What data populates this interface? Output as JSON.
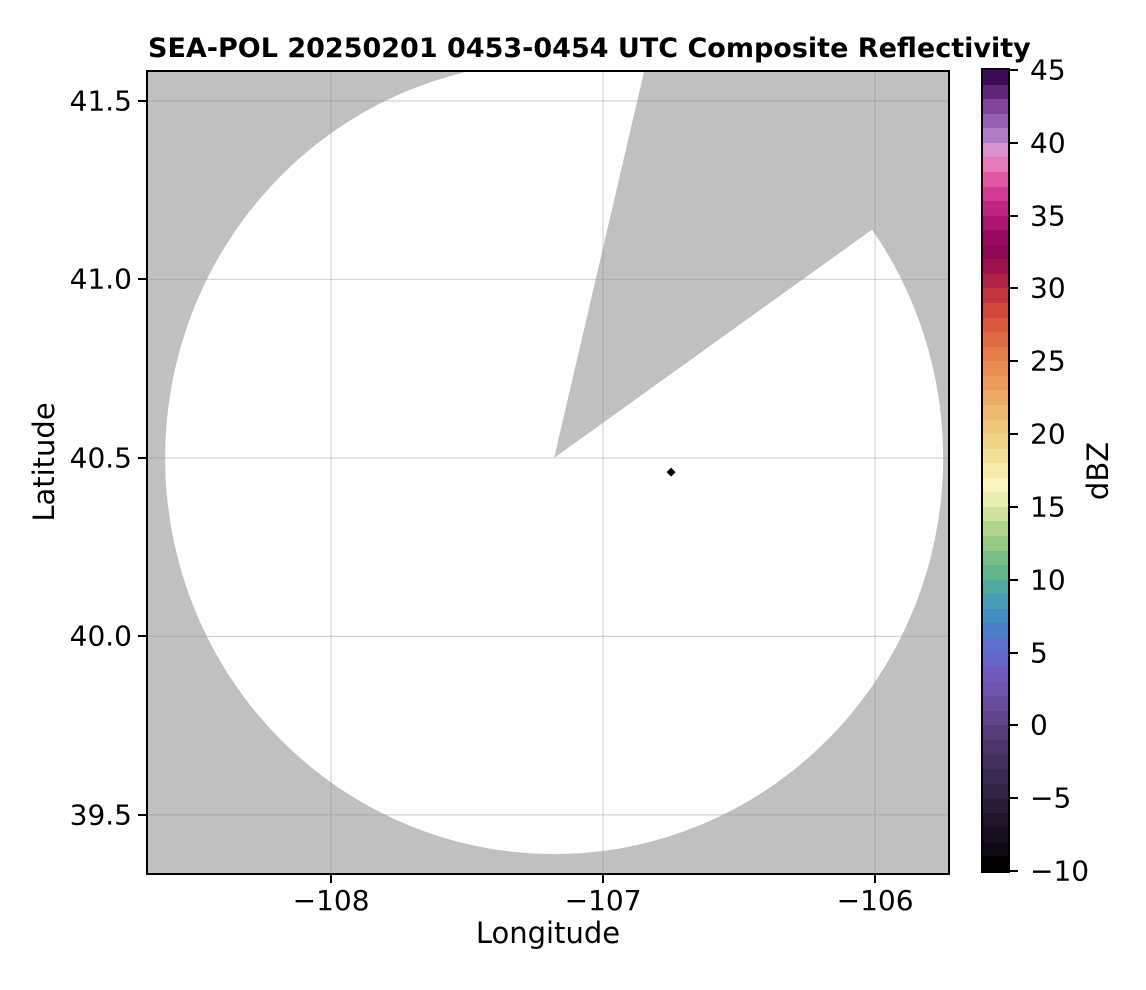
{
  "title": "SEA-POL 20250201 0453-0454 UTC Composite Reflectivity",
  "colors": {
    "figure_bg": "#ffffff",
    "plot_bg_missing": "#c0c0c0",
    "scanned_area": "#ffffff",
    "spine": "#000000",
    "grid": "#8c8c8c",
    "marker": "#000000"
  },
  "chart_data": {
    "type": "heatmap",
    "subtype": "radar-ppi-composite-reflectivity-map",
    "title": "SEA-POL 20250201 0453-0454 UTC Composite Reflectivity",
    "xlabel": "Longitude",
    "ylabel": "Latitude",
    "xlim": [
      -108.673,
      -105.732
    ],
    "ylim": [
      39.337,
      41.581
    ],
    "x_ticks": [
      -108,
      -107,
      -106
    ],
    "x_tick_labels": [
      "−108",
      "−107",
      "−106"
    ],
    "y_ticks": [
      41.5,
      41.0,
      40.5,
      40.0,
      39.5
    ],
    "y_tick_labels": [
      "41.5",
      "41.0",
      "40.5",
      "40.0",
      "39.5"
    ],
    "grid": true,
    "radar_coverage": {
      "center_lon": -107.18,
      "center_lat": 40.5,
      "radius_lon_deg": 1.43,
      "radius_lat_deg": 1.11,
      "fill": "#ffffff",
      "note": "white disk = scanned area with no echo; gray = no data"
    },
    "missing_sector": {
      "vertex_lon": -107.18,
      "vertex_lat": 40.5,
      "edge1": {
        "lon": -106.85,
        "lat": 41.58
      },
      "edge2": {
        "lon": -106.01,
        "lat": 41.14
      },
      "fill": "#c0c0c0"
    },
    "echoes": [
      {
        "lon": -106.75,
        "lat": 40.46,
        "shape": "diamond",
        "color": "#000000",
        "approx_dbz": 45
      }
    ],
    "colorbar": {
      "label": "dBZ",
      "min": -10,
      "max": 45,
      "tick_step": 5,
      "ticks": [
        45,
        40,
        35,
        30,
        25,
        20,
        15,
        10,
        5,
        0,
        -5,
        -10
      ],
      "tick_labels": [
        "45",
        "40",
        "35",
        "30",
        "25",
        "20",
        "15",
        "10",
        "5",
        "0",
        "−5",
        "−10"
      ],
      "colors_bottom_to_top": [
        "#000000",
        "#0e0914",
        "#170f1f",
        "#1f152b",
        "#281c37",
        "#302344",
        "#392a51",
        "#42305e",
        "#4b356c",
        "#553d7c",
        "#5f448d",
        "#684c9e",
        "#6f54af",
        "#6e5bbd",
        "#6765c8",
        "#5a70ca",
        "#4a7ec8",
        "#428ec3",
        "#489cb6",
        "#51a9a2",
        "#62b58d",
        "#79bf84",
        "#95ca85",
        "#b2d58d",
        "#cfe29e",
        "#e9efb0",
        "#faf4bf",
        "#f7eba9",
        "#f5df96",
        "#f2d287",
        "#f0c67a",
        "#eeb96f",
        "#edab66",
        "#eb9c5c",
        "#e98d52",
        "#e57c4a",
        "#e06b43",
        "#da593e",
        "#d2463b",
        "#c2343e",
        "#b02346",
        "#9d114c",
        "#8c0754",
        "#9a0a62",
        "#ac1572",
        "#c02483",
        "#d23a94",
        "#e058a5",
        "#e679b8",
        "#da93d0",
        "#b07cc6",
        "#9760b2",
        "#83439c",
        "#622577",
        "#3d0c54"
      ]
    }
  }
}
